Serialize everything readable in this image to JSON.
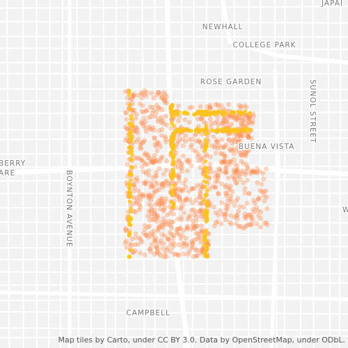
{
  "labels": {
    "newhall": "NEWHALL",
    "college_park": "COLLEGE PARK",
    "rose_garden": "ROSE GARDEN",
    "buena_vista": "BUENA VISTA",
    "sunol_street": "SUNOL STREET",
    "boynton_avenue": "BOYNTON AVENUE",
    "campbell": "CAMPBELL",
    "berry": "BERRY",
    "are": "ARE",
    "japan": "JAPAI",
    "w": "W"
  },
  "attribution": "Map tiles by Carto, under CC BY 3.0. Data by OpenStreetMap, under ODbL."
}
